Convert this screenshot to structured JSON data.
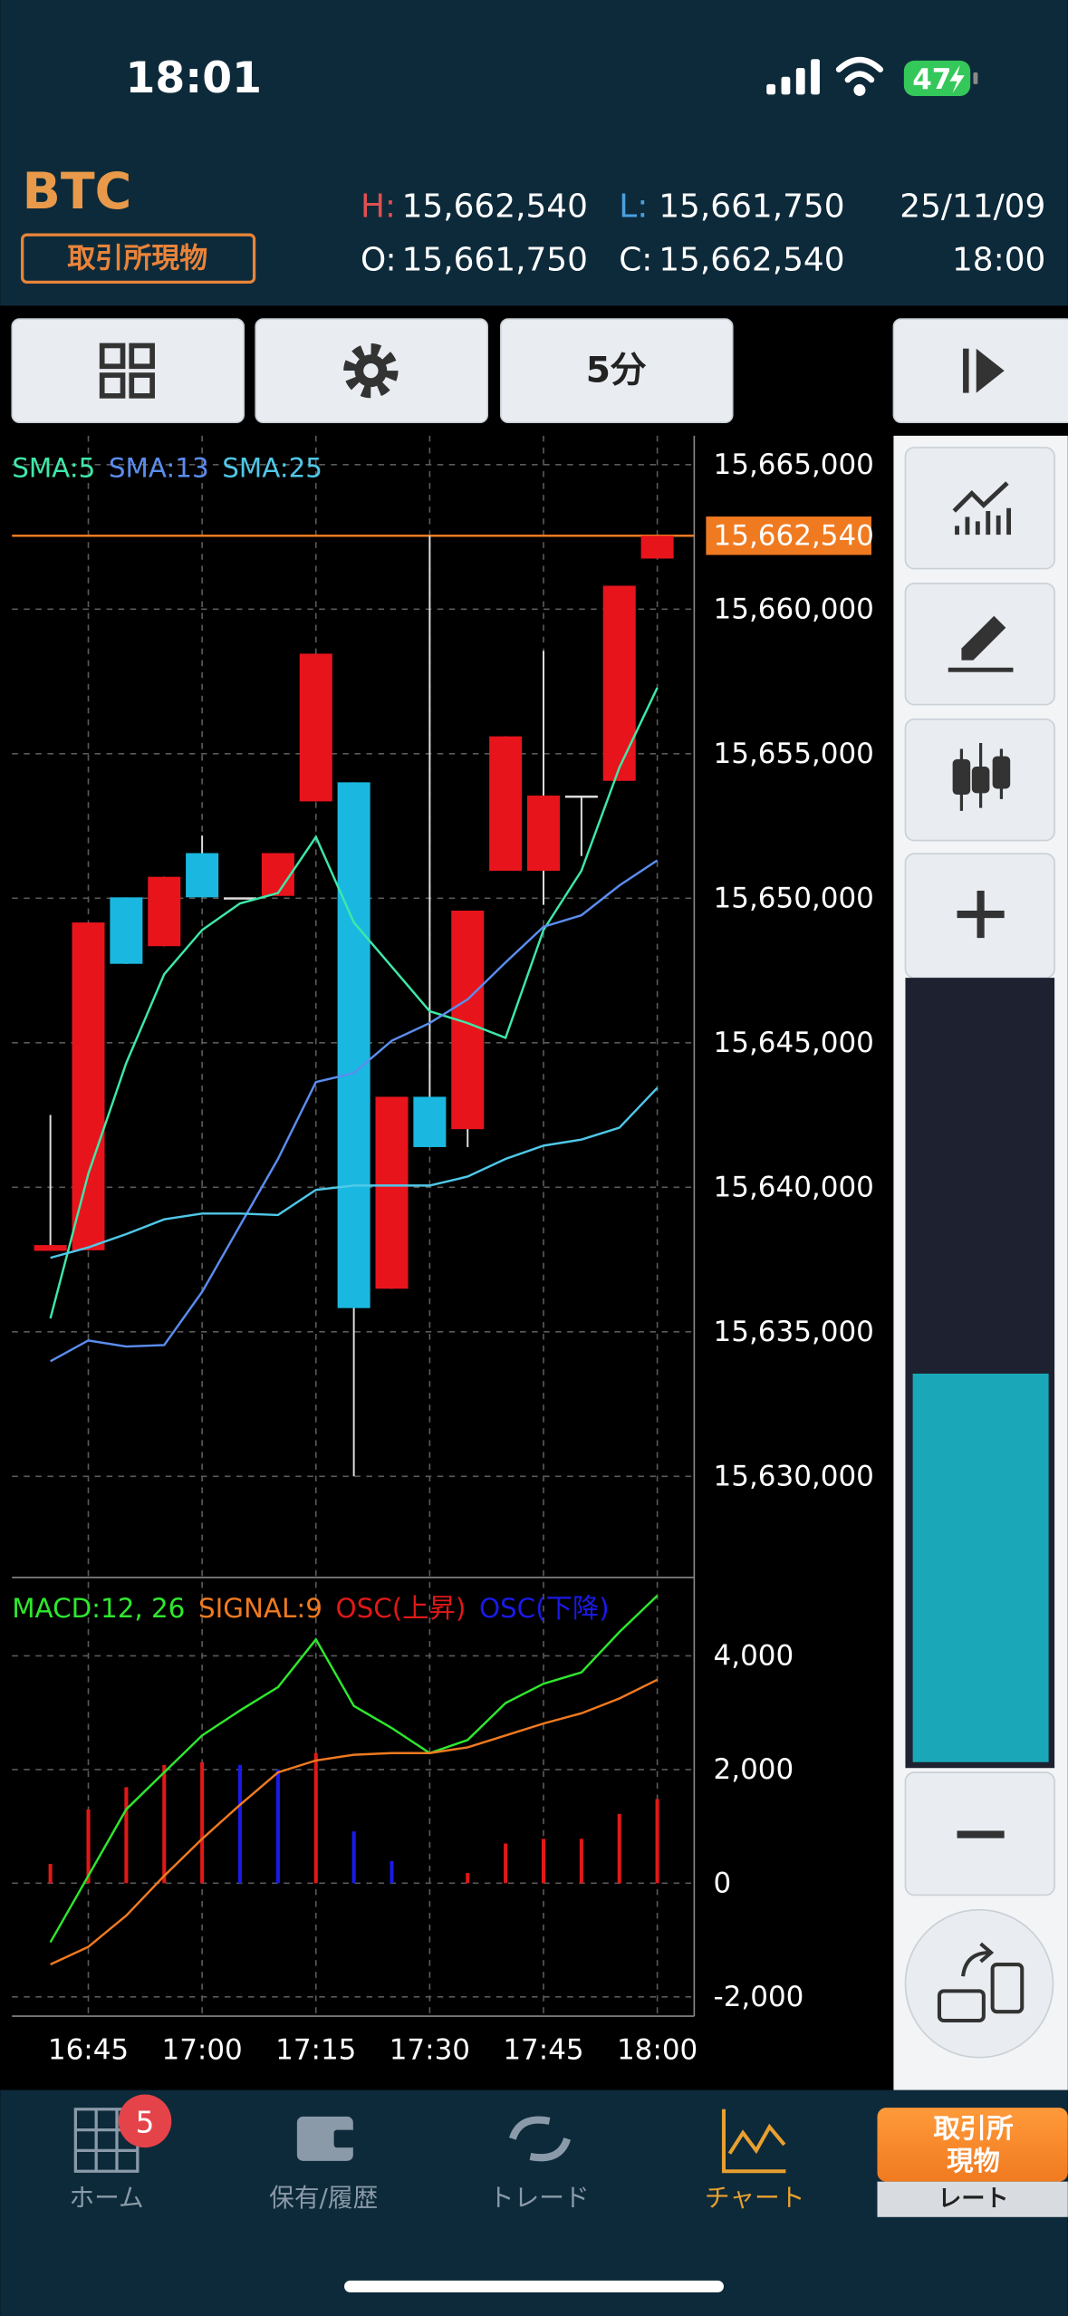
{
  "status_bar": {
    "time": "18:01",
    "battery": "47"
  },
  "header": {
    "symbol": "BTC",
    "market": "取引所現物",
    "high_label": "H:",
    "high": "15,662,540",
    "low_label": "L:",
    "low": "15,661,750",
    "open_label": "O:",
    "open": "15,661,750",
    "close_label": "C:",
    "close": "15,662,540",
    "date": "25/11/09",
    "time": "18:00"
  },
  "toolbar": {
    "interval": "5分"
  },
  "chart_data": [
    {
      "type": "candlestick",
      "open": [
        15637800,
        15637820,
        15650030,
        15648340,
        15651560,
        15650030,
        15650080,
        15653350,
        15654010,
        15636490,
        15643130,
        15642010,
        15650950,
        15650950,
        15653550,
        15654060,
        15661750
      ],
      "high": [
        15642500,
        15649160,
        15650030,
        15650740,
        15652170,
        15650030,
        15651560,
        15658460,
        15654010,
        15643130,
        15662540,
        15649570,
        15655600,
        15658560,
        15653550,
        15660810,
        15662540
      ],
      "low": [
        15637800,
        15637820,
        15647730,
        15648340,
        15650030,
        15650030,
        15650080,
        15653350,
        15630000,
        15636490,
        15641390,
        15641390,
        15650950,
        15649770,
        15651460,
        15654060,
        15661750
      ],
      "close": [
        15638000,
        15649160,
        15647730,
        15650740,
        15650030,
        15650030,
        15651560,
        15658460,
        15635820,
        15643130,
        15641390,
        15649570,
        15655600,
        15653550,
        15653550,
        15660810,
        15662540
      ],
      "up_color": "#e8141c",
      "down_color": "#1ab8e0",
      "wick_color": "#e0e0e0",
      "series": [
        {
          "name": "SMA:5",
          "color": "#3ee8a8",
          "values": [
            15635460,
            15640470,
            15644300,
            15647370,
            15648900,
            15649820,
            15650180,
            15652120,
            15649160,
            15647630,
            15646090,
            15645680,
            15645170,
            15648900,
            15650950,
            15654520,
            15657280
          ]
        },
        {
          "name": "SMA:13",
          "color": "#5b8def",
          "values": [
            15633980,
            15634700,
            15634490,
            15634540,
            15636380,
            15638680,
            15640980,
            15643640,
            15643950,
            15645070,
            15645680,
            15646500,
            15647780,
            15649010,
            15649410,
            15650440,
            15651310
          ]
        },
        {
          "name": "SMA:25",
          "color": "#4fc8e8",
          "values": [
            15637560,
            15637920,
            15638380,
            15638890,
            15639090,
            15639090,
            15639040,
            15639910,
            15640060,
            15640060,
            15640060,
            15640370,
            15640980,
            15641440,
            15641650,
            15642060,
            15643440
          ]
        }
      ],
      "ylim": [
        15626500,
        15666000
      ],
      "yticks": [
        {
          "value": 15630000,
          "label": "15,630,000"
        },
        {
          "value": 15635000,
          "label": "15,635,000"
        },
        {
          "value": 15640000,
          "label": "15,640,000"
        },
        {
          "value": 15645000,
          "label": "15,645,000"
        },
        {
          "value": 15650000,
          "label": "15,650,000"
        },
        {
          "value": 15655000,
          "label": "15,655,000"
        },
        {
          "value": 15660000,
          "label": "15,660,000"
        },
        {
          "value": 15665000,
          "label": "15,665,000"
        }
      ],
      "grid": true,
      "last_price": {
        "value": 15662540,
        "label": "15,662,540"
      },
      "last_price_color": "#f07a20"
    },
    {
      "type": "macd",
      "categories": [
        null,
        "16:45",
        null,
        null,
        "17:00",
        null,
        null,
        "17:15",
        null,
        null,
        "17:30",
        null,
        null,
        "17:45",
        null,
        null,
        "18:00"
      ],
      "series": [
        {
          "name": "MACD:12, 26",
          "color": "#2ee82e",
          "kind": "line",
          "values": [
            -1040,
            130,
            1300,
            1950,
            2600,
            3040,
            3450,
            4290,
            3120,
            2730,
            2290,
            2520,
            3170,
            3510,
            3710,
            4420,
            5060
          ]
        },
        {
          "name": "SIGNAL:9",
          "color": "#f07a20",
          "kind": "line",
          "values": [
            -1430,
            -1120,
            -570,
            130,
            780,
            1380,
            1950,
            2160,
            2260,
            2290,
            2290,
            2390,
            2600,
            2810,
            2990,
            3250,
            3580
          ]
        },
        {
          "name": "OSC(上昇)",
          "color": "#e01818",
          "kind": "bar",
          "values": [
            340,
            1300,
            1690,
            2080,
            2130,
            null,
            null,
            2290,
            null,
            null,
            null,
            180,
            700,
            780,
            780,
            1220,
            1480
          ]
        },
        {
          "name": "OSC(下降)",
          "color": "#1a1ae8",
          "kind": "bar",
          "values": [
            null,
            null,
            null,
            null,
            null,
            2080,
            2000,
            null,
            910,
            390,
            null,
            null,
            null,
            null,
            null,
            null,
            null
          ]
        }
      ],
      "ylim": [
        -2340,
        5380
      ],
      "yticks": [
        {
          "value": -2000,
          "label": "-2,000"
        },
        0,
        {
          "value": 2000,
          "label": "2,000"
        },
        {
          "value": 4000,
          "label": "4,000"
        }
      ],
      "grid": true
    }
  ],
  "nav": {
    "items": [
      "ホーム",
      "保有/履歴",
      "トレード",
      "チャート"
    ],
    "badge": "5",
    "rate_button": {
      "lines": [
        "取引所",
        "現物"
      ],
      "label": "レート"
    }
  }
}
